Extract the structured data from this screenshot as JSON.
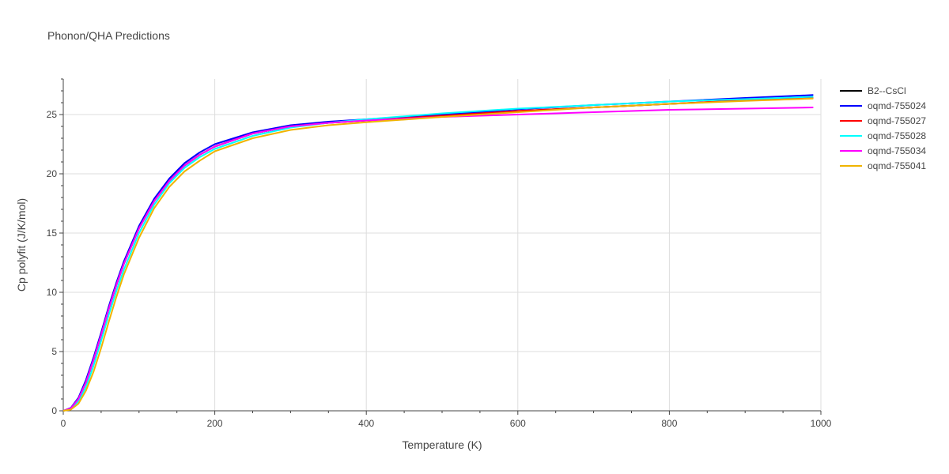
{
  "chart_data": {
    "type": "line",
    "title": "Phonon/QHA Predictions",
    "xlabel": "Temperature (K)",
    "ylabel": "Cp polyfit (J/K/mol)",
    "xlim": [
      0,
      1000
    ],
    "ylim": [
      0,
      28
    ],
    "xticks": [
      0,
      200,
      400,
      600,
      800,
      1000
    ],
    "yticks": [
      0,
      5,
      10,
      15,
      20,
      25
    ],
    "grid": true,
    "legend_position": "top-right",
    "x": [
      0,
      10,
      20,
      30,
      40,
      50,
      60,
      70,
      80,
      100,
      120,
      140,
      160,
      180,
      200,
      250,
      300,
      350,
      400,
      500,
      600,
      700,
      800,
      900,
      990
    ],
    "series": [
      {
        "name": "B2--CsCl",
        "color": "#000000",
        "values": [
          0,
          0.2,
          1.0,
          2.4,
          4.3,
          6.4,
          8.6,
          10.6,
          12.4,
          15.4,
          17.7,
          19.4,
          20.7,
          21.6,
          22.3,
          23.4,
          24.0,
          24.3,
          24.5,
          24.9,
          25.3,
          25.6,
          25.9,
          26.2,
          26.4
        ]
      },
      {
        "name": "oqmd-755024",
        "color": "#0000ff",
        "values": [
          0,
          0.25,
          1.1,
          2.6,
          4.5,
          6.6,
          8.8,
          10.8,
          12.6,
          15.6,
          17.9,
          19.6,
          20.9,
          21.8,
          22.5,
          23.5,
          24.1,
          24.4,
          24.6,
          25.0,
          25.45,
          25.8,
          26.1,
          26.4,
          26.65
        ]
      },
      {
        "name": "oqmd-755027",
        "color": "#ff0000",
        "values": [
          0,
          0.2,
          1.0,
          2.4,
          4.3,
          6.4,
          8.6,
          10.6,
          12.4,
          15.4,
          17.7,
          19.4,
          20.7,
          21.6,
          22.3,
          23.4,
          24.0,
          24.3,
          24.5,
          24.9,
          25.3,
          25.6,
          25.9,
          26.2,
          26.4
        ]
      },
      {
        "name": "oqmd-755028",
        "color": "#00ffff",
        "values": [
          0,
          0.15,
          0.8,
          2.0,
          3.8,
          5.9,
          8.1,
          10.1,
          11.9,
          15.0,
          17.4,
          19.2,
          20.5,
          21.4,
          22.1,
          23.2,
          23.9,
          24.3,
          24.6,
          25.1,
          25.5,
          25.8,
          26.1,
          26.3,
          26.5
        ]
      },
      {
        "name": "oqmd-755034",
        "color": "#ff00ff",
        "values": [
          0,
          0.2,
          1.0,
          2.4,
          4.3,
          6.4,
          8.6,
          10.6,
          12.4,
          15.4,
          17.7,
          19.4,
          20.7,
          21.6,
          22.3,
          23.4,
          24.0,
          24.3,
          24.5,
          24.8,
          25.0,
          25.2,
          25.4,
          25.5,
          25.6
        ]
      },
      {
        "name": "oqmd-755041",
        "color": "#f0b400",
        "values": [
          0,
          0.1,
          0.6,
          1.7,
          3.3,
          5.3,
          7.5,
          9.6,
          11.5,
          14.6,
          17.1,
          18.9,
          20.2,
          21.1,
          21.9,
          23.0,
          23.7,
          24.1,
          24.35,
          24.8,
          25.2,
          25.6,
          25.9,
          26.15,
          26.35
        ]
      }
    ]
  }
}
